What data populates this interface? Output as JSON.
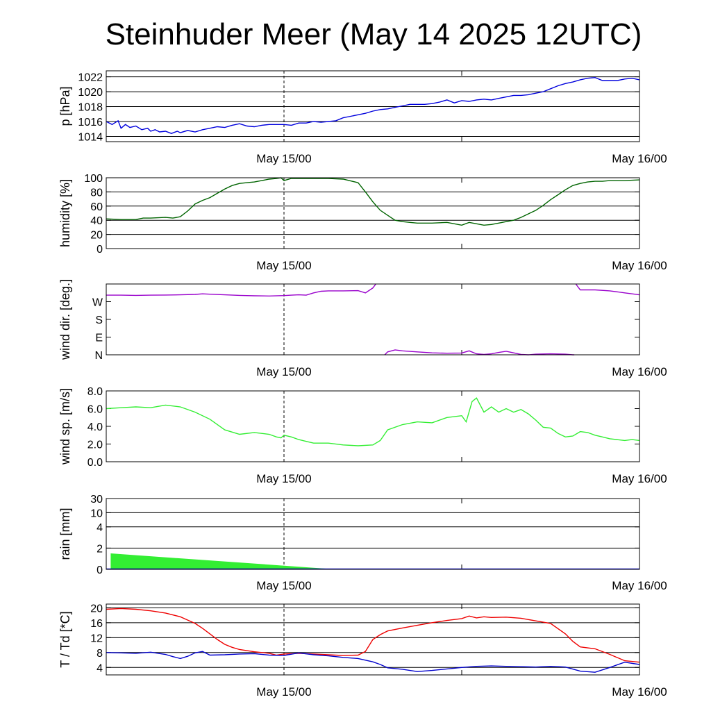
{
  "title": "Steinhuder Meer (May 14 2025 12UTC)",
  "chart_data": [
    {
      "type": "line",
      "ylabel": "p [hPa]",
      "ylim": [
        1013.3,
        1022.8
      ],
      "yticks": [
        1014,
        1016,
        1018,
        1020,
        1022
      ],
      "ytick_labels": [
        "1014",
        "1016",
        "1018",
        "1020",
        "1022"
      ],
      "grid": true,
      "xlim": [
        0,
        36
      ],
      "x_tick_positions": [
        12,
        36
      ],
      "x_tick_labels": [
        "May 15/00",
        "May 16/00"
      ],
      "x_minor_tick": 24,
      "marker_line_x": 12,
      "series": [
        {
          "color": "#0000dd",
          "x": [
            0,
            0.4,
            0.8,
            1,
            1.3,
            1.6,
            2,
            2.4,
            2.8,
            3,
            3.3,
            3.6,
            4,
            4.4,
            4.8,
            5,
            5.5,
            6,
            6.5,
            7,
            7.5,
            8,
            8.5,
            9,
            9.5,
            10,
            10.5,
            11,
            11.5,
            12,
            12.5,
            13,
            13.5,
            14,
            14.5,
            15,
            15.5,
            16,
            16.5,
            17,
            17.5,
            18,
            18.5,
            19,
            19.5,
            20,
            20.5,
            21,
            21.5,
            22,
            22.5,
            23,
            23.5,
            24,
            24.5,
            25,
            25.5,
            26,
            26.5,
            27,
            27.5,
            28,
            28.5,
            29,
            29.5,
            30,
            30.5,
            31,
            31.5,
            32,
            32.5,
            33,
            33.5,
            34,
            34.5,
            35,
            35.5,
            36
          ],
          "y": [
            1016,
            1015.6,
            1016.1,
            1015.1,
            1015.6,
            1015.2,
            1015.4,
            1014.9,
            1015.1,
            1014.7,
            1014.9,
            1014.6,
            1014.7,
            1014.4,
            1014.7,
            1014.5,
            1014.8,
            1014.6,
            1014.9,
            1015.1,
            1015.3,
            1015.2,
            1015.5,
            1015.7,
            1015.4,
            1015.3,
            1015.5,
            1015.6,
            1015.6,
            1015.6,
            1015.5,
            1015.8,
            1015.8,
            1016,
            1015.9,
            1016.0,
            1016.1,
            1016.5,
            1016.7,
            1016.9,
            1017.1,
            1017.4,
            1017.6,
            1017.7,
            1017.9,
            1018.1,
            1018.3,
            1018.3,
            1018.3,
            1018.4,
            1018.6,
            1018.9,
            1018.5,
            1018.8,
            1018.7,
            1018.9,
            1019,
            1018.9,
            1019.1,
            1019.3,
            1019.5,
            1019.5,
            1019.6,
            1019.8,
            1020,
            1020.4,
            1020.8,
            1021.1,
            1021.3,
            1021.6,
            1021.8,
            1021.9,
            1021.5,
            1021.5,
            1021.5,
            1021.7,
            1021.8,
            1021.6
          ]
        }
      ]
    },
    {
      "type": "line",
      "ylabel": "humidity [%]",
      "ylim": [
        0,
        100
      ],
      "yticks": [
        0,
        20,
        40,
        60,
        80,
        100
      ],
      "ytick_labels": [
        "0",
        "20",
        "40",
        "60",
        "80",
        "100"
      ],
      "grid": true,
      "xlim": [
        0,
        36
      ],
      "x_tick_positions": [
        12,
        36
      ],
      "x_tick_labels": [
        "May 15/00",
        "May 16/00"
      ],
      "x_minor_tick": 24,
      "marker_line_x": 12,
      "series": [
        {
          "color": "#006400",
          "x": [
            0,
            1,
            2,
            2.5,
            3,
            4,
            4.5,
            5,
            5.5,
            6,
            6.5,
            7,
            7.5,
            8,
            8.5,
            9,
            9.5,
            10,
            10.5,
            11,
            11.5,
            11.8,
            12,
            12.5,
            13,
            14,
            15,
            16,
            17,
            17.5,
            18,
            18.5,
            19,
            19.5,
            20,
            20.5,
            21,
            22,
            23,
            24,
            24.5,
            25,
            25.5,
            26,
            26.5,
            27,
            27.5,
            28,
            28.5,
            29,
            29.5,
            30,
            30.5,
            31,
            31.5,
            32,
            32.5,
            33,
            33.5,
            34,
            34.5,
            35,
            36
          ],
          "y": [
            42,
            41,
            41,
            43,
            43,
            44,
            43,
            45,
            53,
            63,
            68,
            72,
            78,
            84,
            89,
            92,
            93,
            94,
            96,
            98,
            99,
            100,
            96,
            99,
            99,
            99,
            99,
            98,
            93,
            80,
            66,
            54,
            47,
            40,
            38,
            37,
            36,
            36,
            37,
            33,
            37,
            35,
            33,
            34,
            36,
            38,
            40,
            44,
            49,
            54,
            61,
            69,
            76,
            83,
            89,
            92,
            94,
            95,
            95,
            96,
            96,
            96,
            97
          ]
        }
      ]
    },
    {
      "type": "line",
      "ylabel": "wind dir. [deg.]",
      "ylim": [
        0,
        360
      ],
      "yticks": [
        0,
        90,
        180,
        270
      ],
      "ytick_labels": [
        "N",
        "E",
        "S",
        "W"
      ],
      "grid": false,
      "xlim": [
        0,
        36
      ],
      "x_tick_positions": [
        12,
        36
      ],
      "x_tick_labels": [
        "May 15/00",
        "May 16/00"
      ],
      "x_minor_tick": 24,
      "marker_line_x": 12,
      "series": [
        {
          "color": "#9900cc",
          "x": [
            0,
            1,
            2,
            3,
            4,
            5,
            6,
            6.5,
            7,
            8,
            9,
            10,
            11,
            12,
            12.5,
            13,
            13.5,
            14,
            14.5,
            15,
            16,
            17,
            17.5,
            18,
            18.2
          ],
          "y": [
            303,
            303,
            302,
            303,
            304,
            305,
            307,
            310,
            308,
            305,
            302,
            300,
            299,
            301,
            303,
            305,
            303,
            315,
            323,
            325,
            325,
            326,
            315,
            340,
            360
          ]
        },
        {
          "color": "#9900cc",
          "x": [
            18.8,
            19,
            19.5,
            20,
            21,
            22,
            23,
            24,
            24.5,
            25,
            25.5,
            26,
            26.5,
            27,
            27.5,
            28,
            28.5,
            29,
            30,
            31,
            31.5,
            31.6
          ],
          "y": [
            0,
            15,
            25,
            20,
            15,
            10,
            8,
            9,
            20,
            5,
            2,
            5,
            12,
            18,
            10,
            2,
            0,
            3,
            5,
            3,
            0,
            0
          ]
        },
        {
          "color": "#9900cc",
          "x": [
            31.7,
            32,
            33,
            34,
            35,
            36
          ],
          "y": [
            360,
            330,
            330,
            325,
            315,
            305
          ]
        }
      ]
    },
    {
      "type": "line",
      "ylabel": "wind sp. [m/s]",
      "ylim": [
        0,
        8
      ],
      "yticks": [
        0,
        2,
        4,
        6,
        8
      ],
      "ytick_labels": [
        "0.0",
        "2.0",
        "4.0",
        "6.0",
        "8.0"
      ],
      "grid": false,
      "xlim": [
        0,
        36
      ],
      "x_tick_positions": [
        12,
        36
      ],
      "x_tick_labels": [
        "May 15/00",
        "May 16/00"
      ],
      "x_minor_tick": 24,
      "marker_line_x": 12,
      "series": [
        {
          "color": "#33ee33",
          "x": [
            0,
            1,
            2,
            3,
            4,
            5,
            6,
            7,
            8,
            9,
            10,
            11,
            11.5,
            11.8,
            12,
            12.5,
            13,
            13.5,
            14,
            15,
            16,
            17,
            18,
            18.5,
            19,
            20,
            21,
            22,
            23,
            24,
            24.3,
            24.7,
            25,
            25.5,
            26,
            26.5,
            27,
            27.5,
            28,
            28.5,
            29,
            29.5,
            30,
            30.5,
            31,
            31.5,
            32,
            32.5,
            33,
            33.5,
            34,
            35,
            35.5,
            36
          ],
          "y": [
            6,
            6.1,
            6.2,
            6.1,
            6.4,
            6.2,
            5.6,
            4.8,
            3.6,
            3.1,
            3.3,
            3.1,
            2.8,
            2.7,
            3,
            2.8,
            2.5,
            2.3,
            2.1,
            2.1,
            1.9,
            1.8,
            1.9,
            2.4,
            3.6,
            4.2,
            4.5,
            4.4,
            5.0,
            5.2,
            4.5,
            6.8,
            7.2,
            5.6,
            6.2,
            5.6,
            6.0,
            5.6,
            5.9,
            5.4,
            4.7,
            3.9,
            3.8,
            3.2,
            2.8,
            2.9,
            3.4,
            3.3,
            3.0,
            2.8,
            2.6,
            2.4,
            2.5,
            2.4
          ]
        }
      ]
    },
    {
      "type": "area",
      "ylabel": "rain [mm]",
      "ylim": [
        0,
        30
      ],
      "yticks": [
        0,
        2,
        4,
        10,
        30
      ],
      "ytick_labels": [
        "0",
        "2",
        "4",
        "10",
        "30"
      ],
      "scale": "nonlinear",
      "grid": true,
      "xlim": [
        0,
        36
      ],
      "x_tick_positions": [
        12,
        36
      ],
      "x_tick_labels": [
        "May 15/00",
        "May 16/00"
      ],
      "x_minor_tick": 24,
      "marker_line_x": 12,
      "series": [
        {
          "color": "#33ee33",
          "x": [
            0.3,
            15.5
          ],
          "y": [
            1.5,
            0
          ]
        }
      ]
    },
    {
      "type": "line",
      "ylabel": "T / Td [*C]",
      "ylim": [
        2,
        21
      ],
      "yticks": [
        4,
        8,
        12,
        16,
        20
      ],
      "ytick_labels": [
        "4",
        "8",
        "12",
        "16",
        "20"
      ],
      "grid": true,
      "xlim": [
        0,
        36
      ],
      "x_tick_positions": [
        12,
        36
      ],
      "x_tick_labels": [
        "May 15/00",
        "May 16/00"
      ],
      "x_minor_tick": 24,
      "marker_line_x": 12,
      "series": [
        {
          "color": "#ee0000",
          "x": [
            0,
            1,
            2,
            3,
            4,
            5,
            6,
            6.5,
            7,
            7.5,
            8,
            8.5,
            9,
            10,
            11,
            11.5,
            12,
            13,
            14,
            15,
            16,
            17,
            17.5,
            18,
            18.5,
            19,
            20,
            21,
            22,
            23,
            24,
            24.5,
            25,
            25.5,
            26,
            27,
            28,
            29,
            30,
            31,
            31.5,
            32,
            33,
            34,
            35,
            36
          ],
          "y": [
            19.6,
            19.8,
            19.6,
            19.2,
            18.6,
            17.6,
            15.8,
            14.5,
            13.0,
            11.5,
            10.2,
            9.4,
            8.8,
            8.2,
            7.8,
            7.3,
            7.6,
            7.8,
            7.6,
            7.4,
            7.2,
            7.3,
            8.3,
            11.5,
            12.8,
            13.8,
            14.6,
            15.3,
            16.0,
            16.6,
            17.1,
            17.8,
            17.3,
            17.6,
            17.4,
            17.5,
            17.2,
            16.5,
            15.8,
            13.0,
            11.0,
            9.5,
            9.0,
            7.5,
            5.8,
            5.4
          ]
        },
        {
          "color": "#0000cc",
          "x": [
            0,
            1,
            2,
            3,
            4,
            4.5,
            5,
            5.5,
            6,
            6.5,
            7,
            8,
            9,
            10,
            11,
            12,
            13,
            14,
            15,
            16,
            17,
            18,
            18.5,
            19,
            20,
            21,
            22,
            23,
            24,
            25,
            26,
            27,
            28,
            29,
            30,
            31,
            32,
            33,
            34,
            35,
            36
          ],
          "y": [
            8.0,
            7.9,
            7.8,
            8.1,
            7.5,
            6.9,
            6.4,
            7.0,
            7.9,
            8.3,
            7.3,
            7.4,
            7.6,
            7.7,
            7.3,
            7.2,
            7.9,
            7.4,
            7.1,
            6.7,
            6.4,
            5.5,
            4.8,
            3.9,
            3.5,
            2.9,
            3.2,
            3.6,
            4.0,
            4.3,
            4.4,
            4.3,
            4.2,
            4.1,
            4.3,
            4.1,
            3.0,
            2.7,
            4.0,
            5.4,
            4.8
          ]
        }
      ]
    }
  ]
}
